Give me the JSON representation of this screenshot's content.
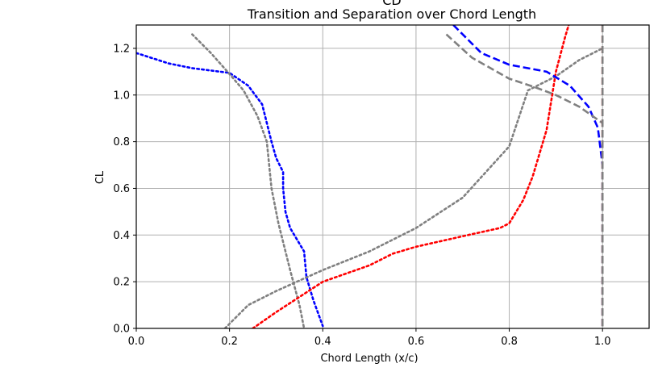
{
  "chart_data": {
    "type": "line",
    "title": "Transition and Separation over Chord Length",
    "top_label": "CD",
    "xlabel": "Chord Length (x/c)",
    "ylabel": "CL",
    "xlim": [
      0.0,
      1.1
    ],
    "ylim": [
      0.0,
      1.3
    ],
    "xticks": [
      "0.0",
      "0.2",
      "0.4",
      "0.6",
      "0.8",
      "1.0"
    ],
    "yticks": [
      "0.0",
      "0.2",
      "0.4",
      "0.6",
      "0.8",
      "1.0",
      "1.2"
    ],
    "grid": true,
    "series": [
      {
        "color": "#0000ff",
        "style": "dotted",
        "points": [
          [
            0.0,
            1.18
          ],
          [
            0.07,
            1.135
          ],
          [
            0.12,
            1.115
          ],
          [
            0.2,
            1.095
          ],
          [
            0.24,
            1.04
          ],
          [
            0.27,
            0.96
          ],
          [
            0.29,
            0.8
          ],
          [
            0.3,
            0.73
          ],
          [
            0.315,
            0.67
          ],
          [
            0.315,
            0.6
          ],
          [
            0.32,
            0.5
          ],
          [
            0.33,
            0.43
          ],
          [
            0.36,
            0.33
          ],
          [
            0.365,
            0.22
          ],
          [
            0.38,
            0.12
          ],
          [
            0.4,
            0.01
          ]
        ]
      },
      {
        "color": "#808080",
        "style": "dotted",
        "points": [
          [
            0.12,
            1.26
          ],
          [
            0.16,
            1.18
          ],
          [
            0.2,
            1.09
          ],
          [
            0.23,
            1.02
          ],
          [
            0.26,
            0.91
          ],
          [
            0.28,
            0.8
          ],
          [
            0.29,
            0.6
          ],
          [
            0.305,
            0.45
          ],
          [
            0.33,
            0.25
          ],
          [
            0.35,
            0.1
          ],
          [
            0.36,
            0.0
          ]
        ]
      },
      {
        "color": "#808080",
        "style": "dotted",
        "points": [
          [
            0.19,
            0.0
          ],
          [
            0.24,
            0.1
          ],
          [
            0.3,
            0.16
          ],
          [
            0.4,
            0.25
          ],
          [
            0.5,
            0.33
          ],
          [
            0.6,
            0.43
          ],
          [
            0.7,
            0.56
          ],
          [
            0.8,
            0.78
          ],
          [
            0.84,
            1.02
          ],
          [
            0.9,
            1.08
          ],
          [
            0.95,
            1.15
          ],
          [
            1.0,
            1.2
          ]
        ]
      },
      {
        "color": "#ff0000",
        "style": "dotted",
        "points": [
          [
            0.25,
            0.0
          ],
          [
            0.3,
            0.07
          ],
          [
            0.4,
            0.2
          ],
          [
            0.5,
            0.27
          ],
          [
            0.55,
            0.32
          ],
          [
            0.6,
            0.35
          ],
          [
            0.7,
            0.395
          ],
          [
            0.78,
            0.43
          ],
          [
            0.8,
            0.45
          ],
          [
            0.83,
            0.55
          ],
          [
            0.85,
            0.65
          ],
          [
            0.88,
            0.85
          ],
          [
            0.9,
            1.1
          ],
          [
            0.92,
            1.25
          ],
          [
            0.935,
            1.35
          ]
        ]
      },
      {
        "color": "#0000ff",
        "style": "dashed",
        "points": [
          [
            0.68,
            1.3
          ],
          [
            0.74,
            1.18
          ],
          [
            0.8,
            1.13
          ],
          [
            0.88,
            1.1
          ],
          [
            0.93,
            1.04
          ],
          [
            0.97,
            0.95
          ],
          [
            0.99,
            0.86
          ],
          [
            1.0,
            0.7
          ],
          [
            1.0,
            0.0
          ]
        ]
      },
      {
        "color": "#808080",
        "style": "dashed",
        "points": [
          [
            0.665,
            1.26
          ],
          [
            0.72,
            1.16
          ],
          [
            0.8,
            1.07
          ],
          [
            0.86,
            1.03
          ],
          [
            0.9,
            1.0
          ],
          [
            0.95,
            0.95
          ],
          [
            1.0,
            0.88
          ],
          [
            1.0,
            0.0
          ]
        ]
      },
      {
        "color": "#ff0000",
        "style": "dashed",
        "points": [
          [
            1.0,
            1.3
          ],
          [
            1.0,
            0.0
          ]
        ]
      },
      {
        "color": "#808080",
        "style": "dashed",
        "points": [
          [
            1.0,
            1.3
          ],
          [
            1.0,
            0.0
          ]
        ]
      }
    ]
  }
}
